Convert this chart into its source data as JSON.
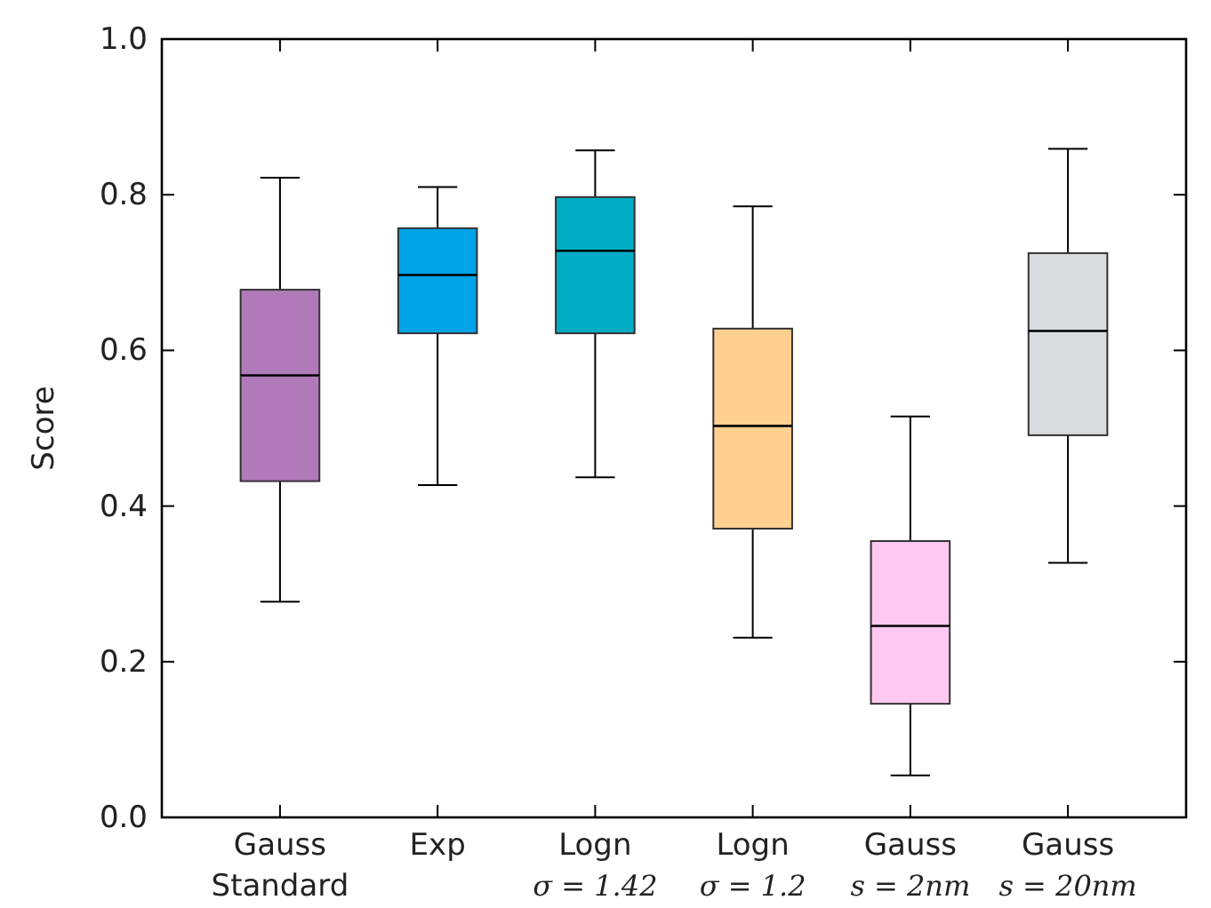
{
  "chart_data": {
    "type": "box",
    "ylabel": "Score",
    "categories": [
      "Gauss\nStandard",
      "Exp",
      "Logn\nσ = 1.42",
      "Logn\nσ = 1.2",
      "Gauss\ns = 2nm",
      "Gauss\ns = 20nm"
    ],
    "colors": [
      "#b07aba",
      "#00a2e8",
      "#00adc4",
      "#ffd08f",
      "#ffc8f0",
      "#d9dcde"
    ],
    "boxes": [
      {
        "low": 0.277,
        "q1": 0.432,
        "median": 0.568,
        "q3": 0.678,
        "high": 0.822
      },
      {
        "low": 0.427,
        "q1": 0.622,
        "median": 0.697,
        "q3": 0.757,
        "high": 0.81
      },
      {
        "low": 0.437,
        "q1": 0.622,
        "median": 0.728,
        "q3": 0.797,
        "high": 0.857
      },
      {
        "low": 0.231,
        "q1": 0.371,
        "median": 0.503,
        "q3": 0.628,
        "high": 0.785
      },
      {
        "low": 0.054,
        "q1": 0.146,
        "median": 0.246,
        "q3": 0.355,
        "high": 0.515
      },
      {
        "low": 0.327,
        "q1": 0.491,
        "median": 0.625,
        "q3": 0.725,
        "high": 0.859
      }
    ],
    "ylim": [
      0,
      1
    ],
    "yticks": [
      {
        "value": 0,
        "label": "0.0"
      },
      {
        "value": 0.2,
        "label": "0.2"
      },
      {
        "value": 0.4,
        "label": "0.4"
      },
      {
        "value": 0.6,
        "label": "0.6"
      },
      {
        "value": 0.8,
        "label": "0.8"
      },
      {
        "value": 1,
        "label": "1.0"
      }
    ],
    "grid": false
  }
}
